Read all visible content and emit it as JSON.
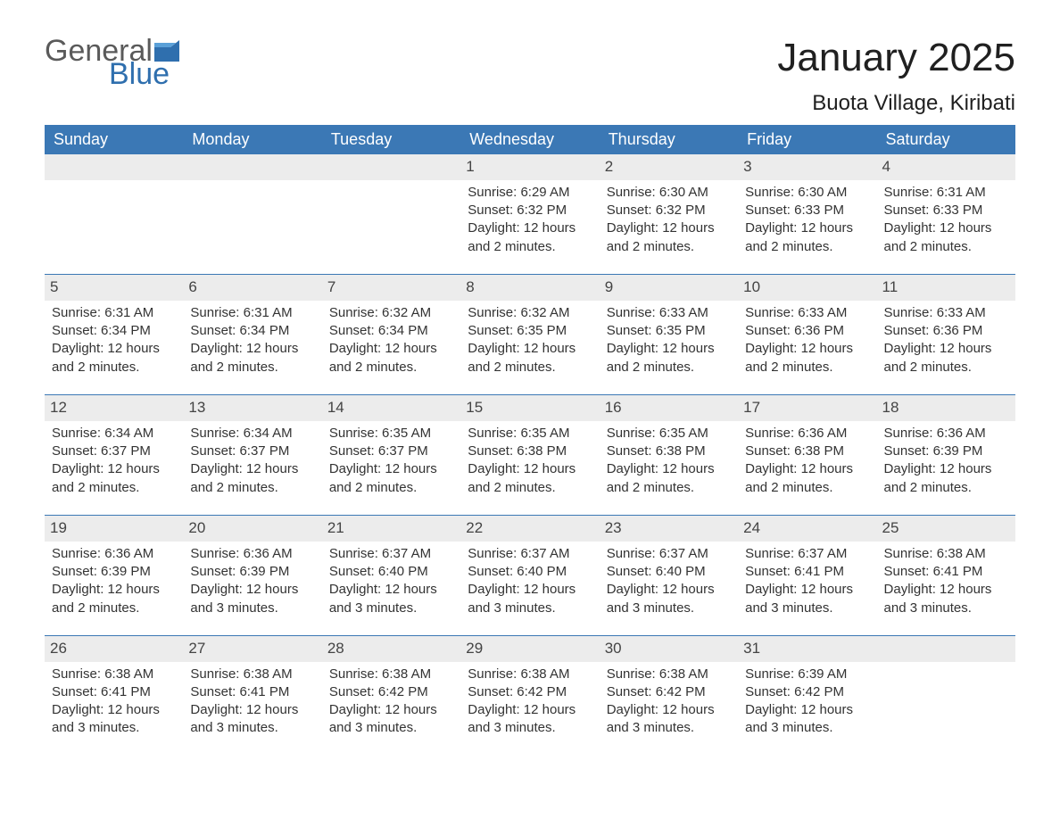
{
  "brand": {
    "word1": "General",
    "word2": "Blue",
    "color_gray": "#5a5a5a",
    "color_blue": "#2f6fae"
  },
  "title": "January 2025",
  "location": "Buota Village, Kiribati",
  "colors": {
    "header_bg": "#3b78b5",
    "header_fg": "#ffffff",
    "date_bg": "#ececec",
    "row_border": "#3b78b5",
    "text": "#333333",
    "page_bg": "#ffffff"
  },
  "fonts": {
    "title_size": 44,
    "location_size": 24,
    "weekday_size": 18,
    "body_size": 15
  },
  "weekdays": [
    "Sunday",
    "Monday",
    "Tuesday",
    "Wednesday",
    "Thursday",
    "Friday",
    "Saturday"
  ],
  "weeks": [
    [
      null,
      null,
      null,
      {
        "d": "1",
        "sr": "6:29 AM",
        "ss": "6:32 PM",
        "dl": "12 hours and 2 minutes."
      },
      {
        "d": "2",
        "sr": "6:30 AM",
        "ss": "6:32 PM",
        "dl": "12 hours and 2 minutes."
      },
      {
        "d": "3",
        "sr": "6:30 AM",
        "ss": "6:33 PM",
        "dl": "12 hours and 2 minutes."
      },
      {
        "d": "4",
        "sr": "6:31 AM",
        "ss": "6:33 PM",
        "dl": "12 hours and 2 minutes."
      }
    ],
    [
      {
        "d": "5",
        "sr": "6:31 AM",
        "ss": "6:34 PM",
        "dl": "12 hours and 2 minutes."
      },
      {
        "d": "6",
        "sr": "6:31 AM",
        "ss": "6:34 PM",
        "dl": "12 hours and 2 minutes."
      },
      {
        "d": "7",
        "sr": "6:32 AM",
        "ss": "6:34 PM",
        "dl": "12 hours and 2 minutes."
      },
      {
        "d": "8",
        "sr": "6:32 AM",
        "ss": "6:35 PM",
        "dl": "12 hours and 2 minutes."
      },
      {
        "d": "9",
        "sr": "6:33 AM",
        "ss": "6:35 PM",
        "dl": "12 hours and 2 minutes."
      },
      {
        "d": "10",
        "sr": "6:33 AM",
        "ss": "6:36 PM",
        "dl": "12 hours and 2 minutes."
      },
      {
        "d": "11",
        "sr": "6:33 AM",
        "ss": "6:36 PM",
        "dl": "12 hours and 2 minutes."
      }
    ],
    [
      {
        "d": "12",
        "sr": "6:34 AM",
        "ss": "6:37 PM",
        "dl": "12 hours and 2 minutes."
      },
      {
        "d": "13",
        "sr": "6:34 AM",
        "ss": "6:37 PM",
        "dl": "12 hours and 2 minutes."
      },
      {
        "d": "14",
        "sr": "6:35 AM",
        "ss": "6:37 PM",
        "dl": "12 hours and 2 minutes."
      },
      {
        "d": "15",
        "sr": "6:35 AM",
        "ss": "6:38 PM",
        "dl": "12 hours and 2 minutes."
      },
      {
        "d": "16",
        "sr": "6:35 AM",
        "ss": "6:38 PM",
        "dl": "12 hours and 2 minutes."
      },
      {
        "d": "17",
        "sr": "6:36 AM",
        "ss": "6:38 PM",
        "dl": "12 hours and 2 minutes."
      },
      {
        "d": "18",
        "sr": "6:36 AM",
        "ss": "6:39 PM",
        "dl": "12 hours and 2 minutes."
      }
    ],
    [
      {
        "d": "19",
        "sr": "6:36 AM",
        "ss": "6:39 PM",
        "dl": "12 hours and 2 minutes."
      },
      {
        "d": "20",
        "sr": "6:36 AM",
        "ss": "6:39 PM",
        "dl": "12 hours and 3 minutes."
      },
      {
        "d": "21",
        "sr": "6:37 AM",
        "ss": "6:40 PM",
        "dl": "12 hours and 3 minutes."
      },
      {
        "d": "22",
        "sr": "6:37 AM",
        "ss": "6:40 PM",
        "dl": "12 hours and 3 minutes."
      },
      {
        "d": "23",
        "sr": "6:37 AM",
        "ss": "6:40 PM",
        "dl": "12 hours and 3 minutes."
      },
      {
        "d": "24",
        "sr": "6:37 AM",
        "ss": "6:41 PM",
        "dl": "12 hours and 3 minutes."
      },
      {
        "d": "25",
        "sr": "6:38 AM",
        "ss": "6:41 PM",
        "dl": "12 hours and 3 minutes."
      }
    ],
    [
      {
        "d": "26",
        "sr": "6:38 AM",
        "ss": "6:41 PM",
        "dl": "12 hours and 3 minutes."
      },
      {
        "d": "27",
        "sr": "6:38 AM",
        "ss": "6:41 PM",
        "dl": "12 hours and 3 minutes."
      },
      {
        "d": "28",
        "sr": "6:38 AM",
        "ss": "6:42 PM",
        "dl": "12 hours and 3 minutes."
      },
      {
        "d": "29",
        "sr": "6:38 AM",
        "ss": "6:42 PM",
        "dl": "12 hours and 3 minutes."
      },
      {
        "d": "30",
        "sr": "6:38 AM",
        "ss": "6:42 PM",
        "dl": "12 hours and 3 minutes."
      },
      {
        "d": "31",
        "sr": "6:39 AM",
        "ss": "6:42 PM",
        "dl": "12 hours and 3 minutes."
      },
      null
    ]
  ],
  "labels": {
    "sunrise": "Sunrise: ",
    "sunset": "Sunset: ",
    "daylight": "Daylight: "
  }
}
